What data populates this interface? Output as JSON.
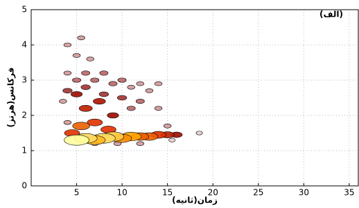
{
  "chart_data": {
    "type": "contour",
    "title": "(الف)",
    "x_label": "زمان(ثانیه)",
    "y_label": "فرکانس(هرتز)",
    "xlim": [
      0,
      36
    ],
    "ylim": [
      0,
      5
    ],
    "xticks": [
      5,
      10,
      15,
      20,
      25,
      30,
      35
    ],
    "yticks": [
      0,
      1,
      2,
      3,
      4,
      5
    ],
    "grid": true,
    "colormap": [
      "#ffffff",
      "#8b0000",
      "#e03000",
      "#ffa500",
      "#ffffa0"
    ],
    "x": [
      5,
      6,
      7,
      8,
      9,
      10,
      11,
      12,
      13,
      14,
      15,
      16,
      5.5,
      7,
      8.5,
      6,
      7.5,
      5,
      9,
      4.5,
      4,
      5,
      5.5,
      6.5,
      4,
      5,
      6,
      7,
      8,
      9,
      10,
      11,
      12,
      13,
      14,
      4,
      6,
      8,
      10,
      12,
      14,
      15,
      18.5,
      15.5,
      12,
      4,
      9.5,
      7,
      3.5,
      11
    ],
    "y": [
      1.3,
      1.35,
      1.3,
      1.35,
      1.4,
      1.35,
      1.4,
      1.4,
      1.4,
      1.45,
      1.45,
      1.45,
      1.7,
      1.8,
      1.6,
      2.2,
      2.4,
      2.6,
      2.0,
      1.5,
      4.0,
      3.7,
      4.2,
      3.6,
      3.2,
      3.0,
      3.2,
      3.0,
      3.2,
      2.9,
      3.0,
      2.8,
      2.9,
      2.7,
      2.9,
      2.7,
      2.8,
      2.6,
      2.5,
      2.4,
      2.2,
      1.7,
      1.5,
      1.3,
      1.2,
      1.8,
      1.2,
      1.2,
      2.4,
      2.2
    ],
    "values": [
      1,
      0.9,
      0.8,
      0.9,
      0.85,
      0.7,
      0.75,
      0.6,
      0.6,
      0.5,
      0.4,
      0.3,
      0.6,
      0.5,
      0.5,
      0.4,
      0.35,
      0.3,
      0.3,
      0.5,
      0.1,
      0.1,
      0.1,
      0.1,
      0.1,
      0.15,
      0.15,
      0.15,
      0.15,
      0.15,
      0.15,
      0.1,
      0.1,
      0.1,
      0.1,
      0.2,
      0.2,
      0.2,
      0.2,
      0.15,
      0.1,
      0.1,
      0.05,
      0.05,
      0.1,
      0.1,
      0.1,
      0.1,
      0.1,
      0.15
    ]
  }
}
